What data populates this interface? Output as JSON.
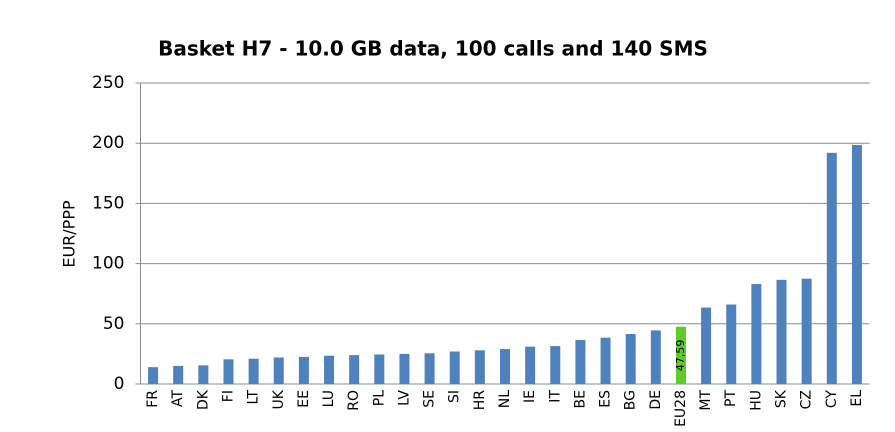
{
  "chart_data": {
    "type": "bar",
    "title": "Basket H7 - 10.0 GB data, 100 calls and 140 SMS",
    "y_label": "EUR/PPP",
    "categories": [
      "FR",
      "AT",
      "DK",
      "FI",
      "LT",
      "UK",
      "EE",
      "LU",
      "RO",
      "PL",
      "LV",
      "SE",
      "SI",
      "HR",
      "NL",
      "IE",
      "IT",
      "BE",
      "ES",
      "BG",
      "DE",
      "EU28",
      "MT",
      "PT",
      "HU",
      "SK",
      "CZ",
      "CY",
      "EL"
    ],
    "values": [
      14,
      15,
      15.5,
      20.5,
      21,
      22,
      22.5,
      23.5,
      24,
      24.5,
      25,
      25.5,
      27,
      28,
      29,
      31,
      31.5,
      36.5,
      38.5,
      41.5,
      44.5,
      47.59,
      63.5,
      66,
      83,
      86.5,
      87.5,
      192,
      198.5
    ],
    "value_labels": [
      null,
      null,
      null,
      null,
      null,
      null,
      null,
      null,
      null,
      null,
      null,
      null,
      null,
      null,
      null,
      null,
      null,
      null,
      null,
      null,
      null,
      "47,59",
      null,
      null,
      null,
      null,
      null,
      null,
      null
    ],
    "colors": [
      "#4f81bd",
      "#4f81bd",
      "#4f81bd",
      "#4f81bd",
      "#4f81bd",
      "#4f81bd",
      "#4f81bd",
      "#4f81bd",
      "#4f81bd",
      "#4f81bd",
      "#4f81bd",
      "#4f81bd",
      "#4f81bd",
      "#4f81bd",
      "#4f81bd",
      "#4f81bd",
      "#4f81bd",
      "#4f81bd",
      "#4f81bd",
      "#4f81bd",
      "#4f81bd",
      "#5ecb2a",
      "#4f81bd",
      "#4f81bd",
      "#4f81bd",
      "#4f81bd",
      "#4f81bd",
      "#4f81bd",
      "#4f81bd"
    ],
    "ylim": [
      0,
      250
    ],
    "yticks": [
      0,
      50,
      100,
      150,
      200,
      250
    ],
    "grid": true
  }
}
